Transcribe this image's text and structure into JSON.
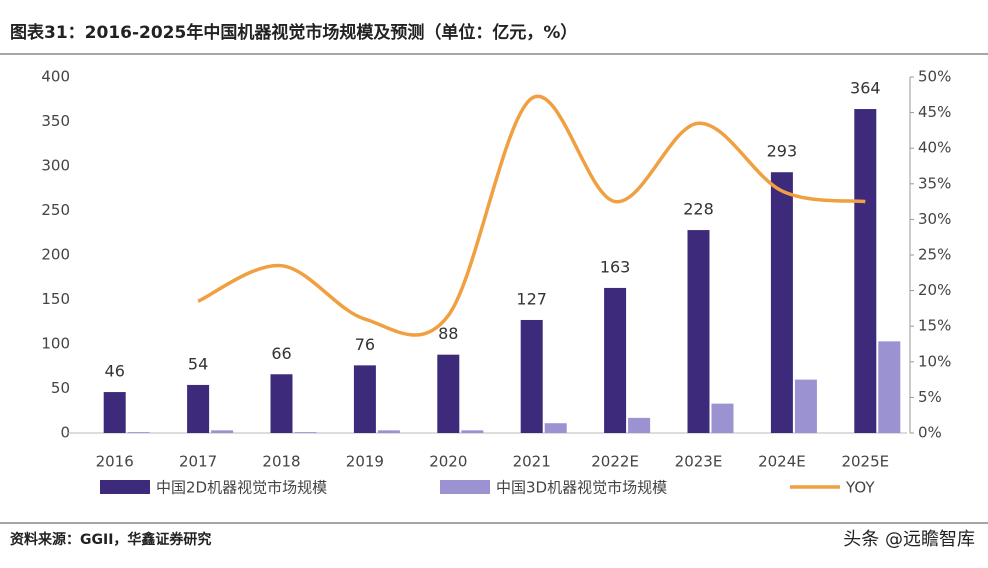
{
  "chart_data": {
    "type": "bar-line",
    "title": "图表31：2016-2025年中国机器视觉市场规模及预测（单位：亿元，%）",
    "source": "资料来源：GGII，华鑫证券研究",
    "watermark": "头条 @远瞻智库",
    "categories": [
      "2016",
      "2017",
      "2018",
      "2019",
      "2020",
      "2021",
      "2022E",
      "2023E",
      "2024E",
      "2025E"
    ],
    "series": [
      {
        "name": "中国2D机器视觉市场规模",
        "type": "bar",
        "color": "#3d2a7a",
        "values": [
          46,
          54,
          66,
          76,
          88,
          127,
          163,
          228,
          293,
          364
        ]
      },
      {
        "name": "中国3D机器视觉市场规模",
        "type": "bar",
        "color": "#9b92d2",
        "values": [
          1,
          3,
          1,
          3,
          3,
          11,
          17,
          33,
          60,
          103
        ]
      },
      {
        "name": "YOY",
        "type": "line",
        "axis": "y2",
        "color": "#f0a040",
        "values": [
          null,
          18.5,
          23.5,
          16,
          16.5,
          47,
          32.5,
          43.5,
          34,
          32.5
        ]
      }
    ],
    "ylim": [
      0,
      400
    ],
    "yticks": [
      0,
      50,
      100,
      150,
      200,
      250,
      300,
      350,
      400
    ],
    "y2lim": [
      0,
      50
    ],
    "y2ticks": [
      {
        "value": 0,
        "label": "0%"
      },
      {
        "value": 5,
        "label": "5%"
      },
      {
        "value": 10,
        "label": "10%"
      },
      {
        "value": 15,
        "label": "15%"
      },
      {
        "value": 20,
        "label": "20%"
      },
      {
        "value": 25,
        "label": "25%"
      },
      {
        "value": 30,
        "label": "30%"
      },
      {
        "value": 35,
        "label": "35%"
      },
      {
        "value": 40,
        "label": "40%"
      },
      {
        "value": 45,
        "label": "45%"
      },
      {
        "value": 50,
        "label": "50%"
      }
    ]
  }
}
